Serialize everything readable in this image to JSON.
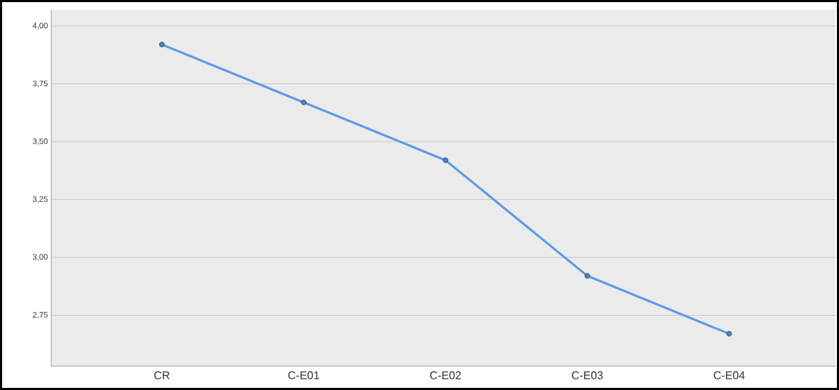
{
  "chart_data": {
    "type": "line",
    "categories": [
      "CR",
      "C-E01",
      "C-E02",
      "C-E03",
      "C-E04"
    ],
    "series": [
      {
        "color": "#5b9be6",
        "values": [
          3.92,
          3.67,
          3.42,
          2.92,
          2.67
        ]
      }
    ],
    "ylim": [
      2.53,
      4.07
    ],
    "yticks": [
      {
        "value": 2.75,
        "label": "2,75"
      },
      {
        "value": 3.0,
        "label": "3,00"
      },
      {
        "value": 3.25,
        "label": "3,25"
      },
      {
        "value": 3.5,
        "label": "3,50"
      },
      {
        "value": 3.75,
        "label": "3,75"
      },
      {
        "value": 4.0,
        "label": "4,00"
      }
    ],
    "grid": "y",
    "marker": "circle",
    "line_style": "solid"
  }
}
